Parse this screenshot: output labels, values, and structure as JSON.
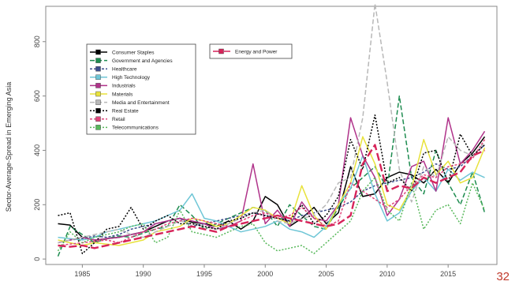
{
  "page_number": "32",
  "chart_data": {
    "type": "line",
    "title": "",
    "xlabel": "",
    "ylabel": "Sector-Average-Spread in Emerging Asia",
    "xlim": [
      1982,
      2019
    ],
    "ylim": [
      -20,
      930
    ],
    "x_ticks": [
      1985,
      1990,
      1995,
      2000,
      2005,
      2010,
      2015
    ],
    "y_ticks": [
      0,
      200,
      400,
      600,
      800
    ],
    "x": [
      1983,
      1984,
      1985,
      1986,
      1987,
      1988,
      1989,
      1990,
      1991,
      1992,
      1993,
      1994,
      1995,
      1996,
      1997,
      1998,
      1999,
      2000,
      2001,
      2002,
      2003,
      2004,
      2005,
      2006,
      2007,
      2008,
      2009,
      2010,
      2011,
      2012,
      2013,
      2014,
      2015,
      2016,
      2017,
      2018
    ],
    "legend_left": {
      "position": "top-left",
      "entries": [
        "Consumer Staples",
        "Government and Agencies",
        "Healthcare",
        "High Technology",
        "Industrials",
        "Materials",
        "Media and Entertainment",
        "Real Estate",
        "Retail",
        "Telecommunications"
      ]
    },
    "legend_right": {
      "position": "top-center",
      "entries": [
        "Energy and Power"
      ]
    },
    "series": [
      {
        "name": "Consumer Staples",
        "color": "#000000",
        "dash": "",
        "values": [
          130,
          125,
          80,
          70,
          75,
          80,
          90,
          100,
          120,
          140,
          150,
          135,
          130,
          120,
          140,
          110,
          140,
          230,
          200,
          120,
          150,
          190,
          130,
          170,
          340,
          230,
          240,
          300,
          320,
          310,
          280,
          330,
          280,
          350,
          390,
          450
        ]
      },
      {
        "name": "Government and Agencies",
        "color": "#1e8c50",
        "dash": "6,3",
        "values": [
          10,
          120,
          90,
          60,
          75,
          85,
          80,
          95,
          110,
          120,
          200,
          160,
          110,
          130,
          150,
          170,
          190,
          180,
          120,
          200,
          160,
          120,
          110,
          190,
          260,
          300,
          340,
          260,
          600,
          300,
          240,
          400,
          280,
          200,
          320,
          170
        ]
      },
      {
        "name": "Healthcare",
        "color": "#3c4d8c",
        "dash": "3,2",
        "values": [
          60,
          70,
          75,
          85,
          80,
          90,
          110,
          120,
          130,
          140,
          150,
          120,
          130,
          140,
          150,
          160,
          170,
          160,
          150,
          140,
          160,
          170,
          180,
          190,
          210,
          250,
          270,
          280,
          290,
          300,
          320,
          350,
          330,
          340,
          380,
          420
        ]
      },
      {
        "name": "High Technology",
        "color": "#6fc6d6",
        "dash": "",
        "values": [
          80,
          75,
          70,
          80,
          100,
          110,
          120,
          130,
          140,
          160,
          180,
          240,
          150,
          140,
          120,
          100,
          110,
          120,
          140,
          110,
          100,
          80,
          120,
          200,
          260,
          380,
          240,
          140,
          170,
          250,
          300,
          250,
          330,
          290,
          320,
          300
        ]
      },
      {
        "name": "Industrials",
        "color": "#b0338a",
        "dash": "",
        "values": [
          60,
          70,
          80,
          70,
          75,
          80,
          90,
          100,
          130,
          140,
          150,
          140,
          130,
          110,
          120,
          140,
          350,
          130,
          180,
          120,
          210,
          150,
          140,
          200,
          520,
          380,
          300,
          160,
          220,
          340,
          360,
          250,
          520,
          350,
          400,
          470
        ]
      },
      {
        "name": "Materials",
        "color": "#e8e23c",
        "dash": "",
        "values": [
          70,
          60,
          50,
          60,
          55,
          50,
          60,
          70,
          100,
          110,
          120,
          150,
          140,
          120,
          130,
          160,
          190,
          180,
          150,
          130,
          270,
          160,
          110,
          200,
          280,
          450,
          350,
          200,
          180,
          260,
          440,
          310,
          360,
          280,
          300,
          410
        ]
      },
      {
        "name": "Media and Entertainment",
        "color": "#b8b8b8",
        "dash": "6,3",
        "values": [
          60,
          70,
          80,
          90,
          100,
          110,
          90,
          80,
          100,
          120,
          140,
          130,
          120,
          110,
          130,
          150,
          170,
          180,
          140,
          130,
          150,
          160,
          200,
          280,
          300,
          520,
          940,
          650,
          330,
          210,
          340,
          300,
          450,
          400,
          380,
          430
        ]
      },
      {
        "name": "Real Estate",
        "color": "#000000",
        "dash": "2,2",
        "values": [
          160,
          170,
          20,
          60,
          110,
          120,
          190,
          110,
          140,
          160,
          130,
          130,
          120,
          110,
          140,
          150,
          170,
          160,
          150,
          140,
          200,
          130,
          160,
          230,
          440,
          330,
          530,
          280,
          300,
          250,
          390,
          400,
          280,
          460,
          380,
          420
        ]
      },
      {
        "name": "Retail",
        "color": "#e0457b",
        "dash": "3,2",
        "values": [
          50,
          55,
          60,
          65,
          70,
          60,
          80,
          100,
          110,
          130,
          140,
          150,
          140,
          130,
          120,
          140,
          160,
          170,
          150,
          160,
          190,
          150,
          120,
          140,
          280,
          250,
          220,
          190,
          220,
          270,
          310,
          300,
          340,
          350,
          370,
          440
        ]
      },
      {
        "name": "Telecommunications",
        "color": "#57b85a",
        "dash": "2,2",
        "values": [
          30,
          100,
          60,
          80,
          90,
          100,
          120,
          130,
          60,
          80,
          180,
          100,
          90,
          80,
          100,
          120,
          130,
          60,
          30,
          40,
          50,
          20,
          60,
          100,
          140,
          250,
          300,
          180,
          140,
          280,
          110,
          180,
          200,
          130,
          280,
          180
        ]
      },
      {
        "name": "Energy and Power",
        "color": "#d6245a",
        "dash": "10,4",
        "values": [
          50,
          45,
          50,
          40,
          50,
          60,
          70,
          80,
          90,
          100,
          110,
          120,
          110,
          100,
          120,
          130,
          140,
          150,
          160,
          150,
          140,
          130,
          120,
          130,
          160,
          350,
          420,
          250,
          270,
          260,
          300,
          280,
          300,
          320,
          380,
          400
        ]
      }
    ]
  }
}
